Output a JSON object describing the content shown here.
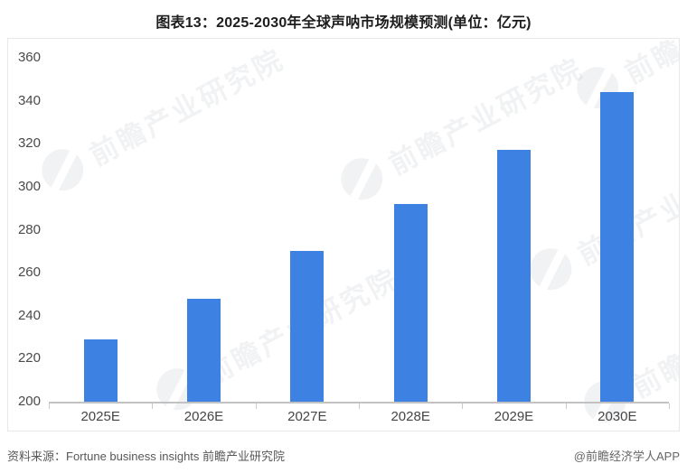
{
  "title": "图表13：2025-2030年全球声呐市场规模预测(单位：亿元)",
  "chart_data": {
    "type": "bar",
    "title": "图表13：2025-2030年全球声呐市场规模预测(单位：亿元)",
    "unit": "亿元",
    "categories": [
      "2025E",
      "2026E",
      "2027E",
      "2028E",
      "2029E",
      "2030E"
    ],
    "values": [
      229,
      248,
      270,
      292,
      317,
      344
    ],
    "xlabel": "",
    "ylabel": "",
    "ylim": [
      200,
      360
    ],
    "ytick_step": 20,
    "grid": false,
    "legend": "none",
    "bar_color": "#3d81e2",
    "axis_line_color": "#c2c2c2",
    "axis_label_color": "#4a4a4a"
  },
  "watermark": {
    "text": "前瞻产业研究院"
  },
  "footer": {
    "source": "资料来源：Fortune business insights 前瞻产业研究院",
    "brand": "@前瞻经济学人APP"
  },
  "colors": {
    "bar": "#3d81e2",
    "border": "#e8e8e8",
    "title_text": "#1d1d1d",
    "footer_text": "#575757"
  }
}
